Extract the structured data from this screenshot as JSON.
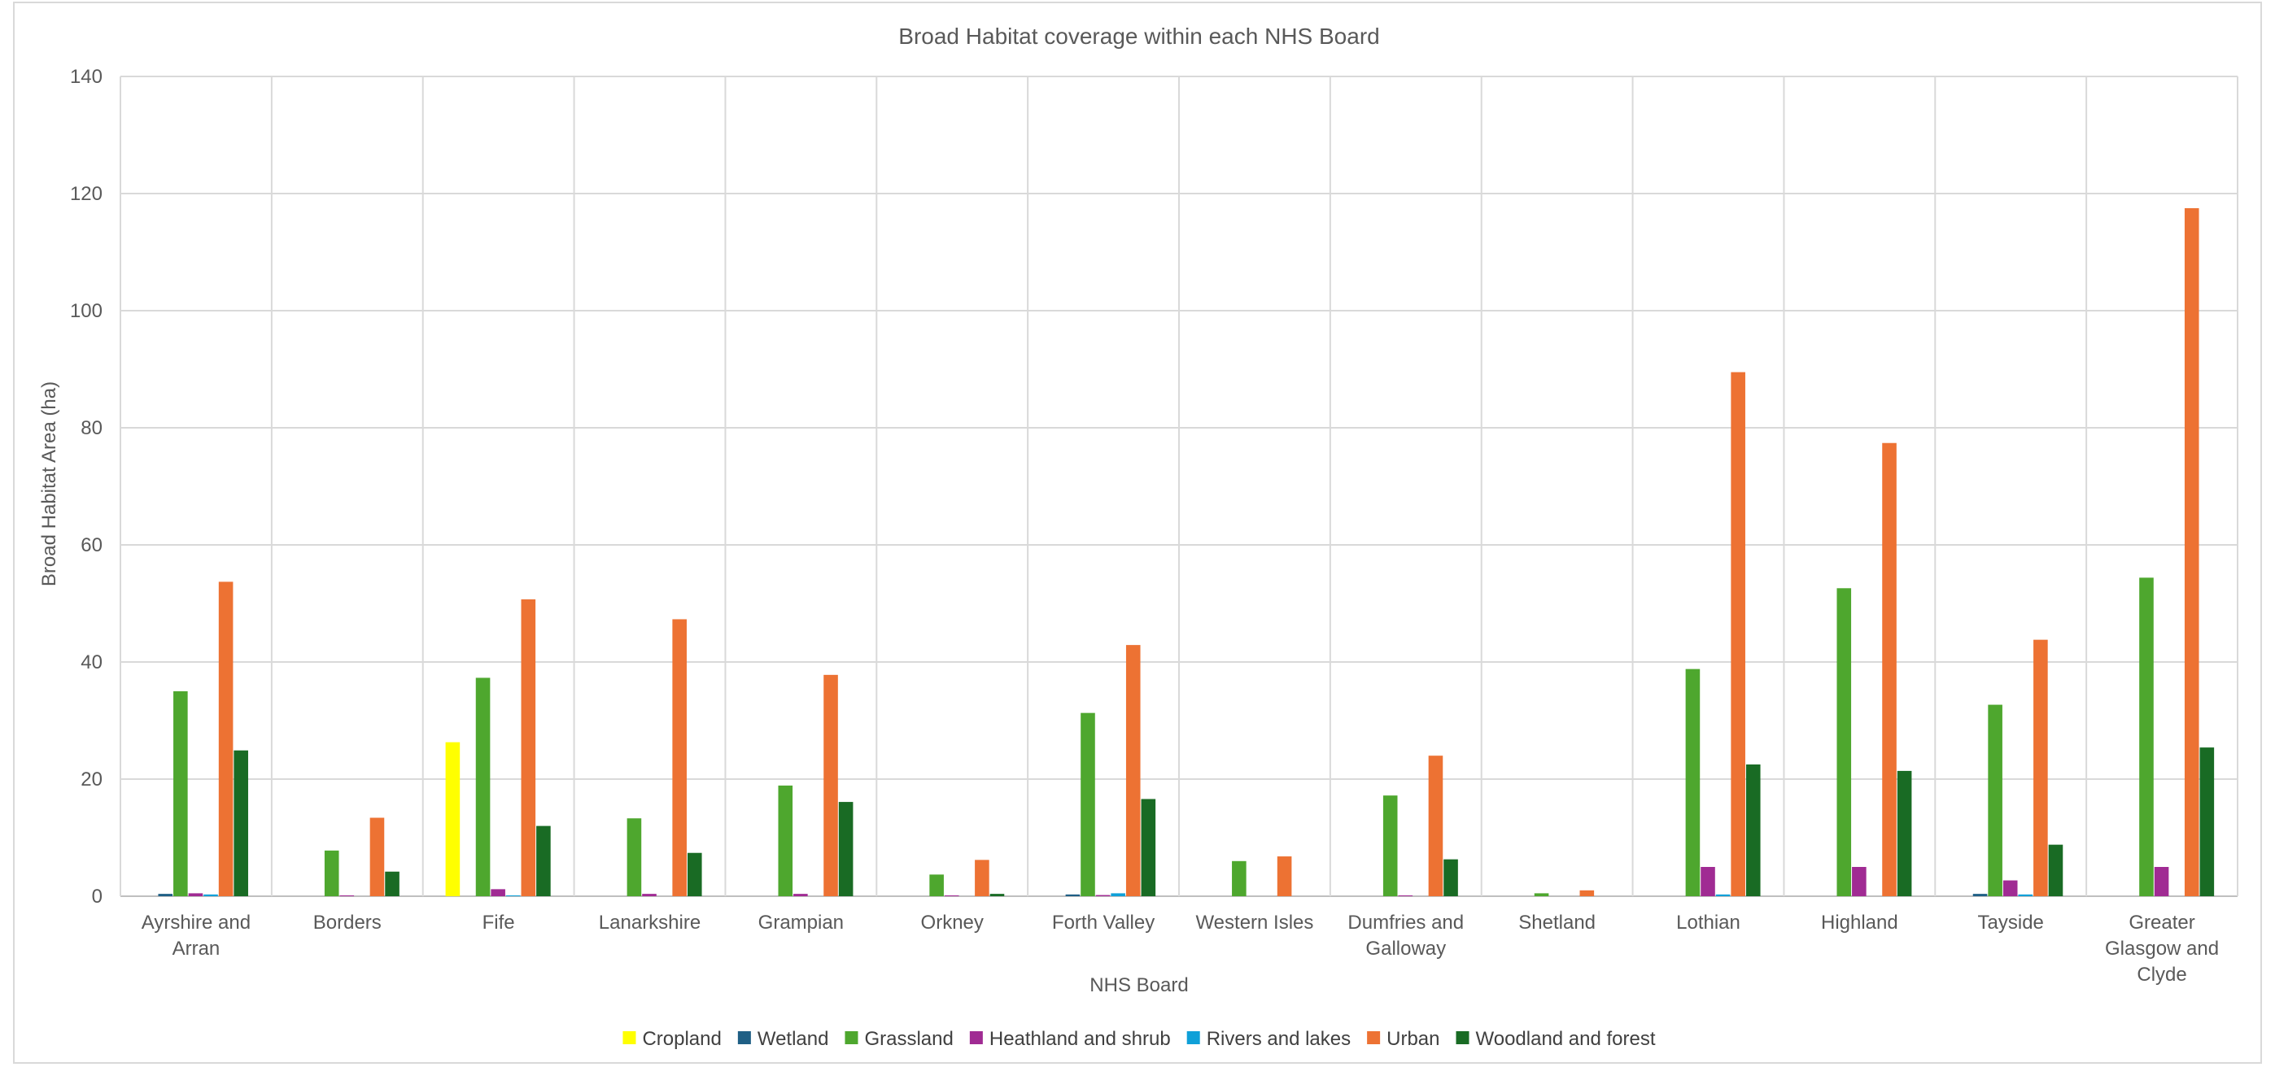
{
  "chart_data": {
    "type": "bar",
    "title": "Broad Habitat coverage within each NHS Board",
    "xlabel": "NHS Board",
    "ylabel": "Broad Habitat Area (ha)",
    "ylim": [
      0,
      140
    ],
    "yticks": [
      0,
      20,
      40,
      60,
      80,
      100,
      120,
      140
    ],
    "grid": true,
    "legend_position": "bottom",
    "categories": [
      "Ayrshire and Arran",
      "Borders",
      "Fife",
      "Lanarkshire",
      "Grampian",
      "Orkney",
      "Forth Valley",
      "Western Isles",
      "Dumfries and Galloway",
      "Shetland",
      "Lothian",
      "Highland",
      "Tayside",
      "Greater Glasgow and Clyde"
    ],
    "series": [
      {
        "name": "Cropland",
        "color": "#ffff00",
        "values": [
          0,
          0,
          26.3,
          0,
          0,
          0,
          0,
          0,
          0,
          0,
          0,
          0,
          0,
          0
        ]
      },
      {
        "name": "Wetland",
        "color": "#1f5f85",
        "values": [
          0.4,
          0,
          0,
          0,
          0,
          0,
          0.3,
          0,
          0,
          0,
          0,
          0,
          0.4,
          0
        ]
      },
      {
        "name": "Grassland",
        "color": "#4ea72e",
        "values": [
          35.0,
          7.8,
          37.3,
          13.3,
          18.9,
          3.7,
          31.3,
          6.0,
          17.2,
          0.5,
          38.8,
          52.6,
          32.7,
          54.4
        ]
      },
      {
        "name": "Heathland and shrub",
        "color": "#a02b93",
        "values": [
          0.5,
          0.1,
          1.2,
          0.4,
          0.4,
          0.1,
          0.2,
          0,
          0.1,
          0,
          5.0,
          5.0,
          2.7,
          5.0
        ]
      },
      {
        "name": "Rivers and lakes",
        "color": "#0fa0d8",
        "values": [
          0.3,
          0,
          0.1,
          0,
          0,
          0,
          0.5,
          0,
          0,
          0,
          0.3,
          0,
          0.3,
          0
        ]
      },
      {
        "name": "Urban",
        "color": "#ed7233",
        "values": [
          53.7,
          13.4,
          50.7,
          47.3,
          37.8,
          6.2,
          42.9,
          6.8,
          24.0,
          1.0,
          89.5,
          77.4,
          43.8,
          117.5
        ]
      },
      {
        "name": "Woodland and forest",
        "color": "#196b24",
        "values": [
          24.9,
          4.2,
          12.0,
          7.4,
          16.1,
          0.4,
          16.6,
          0,
          6.3,
          0,
          22.5,
          21.4,
          8.8,
          25.4
        ]
      }
    ]
  }
}
